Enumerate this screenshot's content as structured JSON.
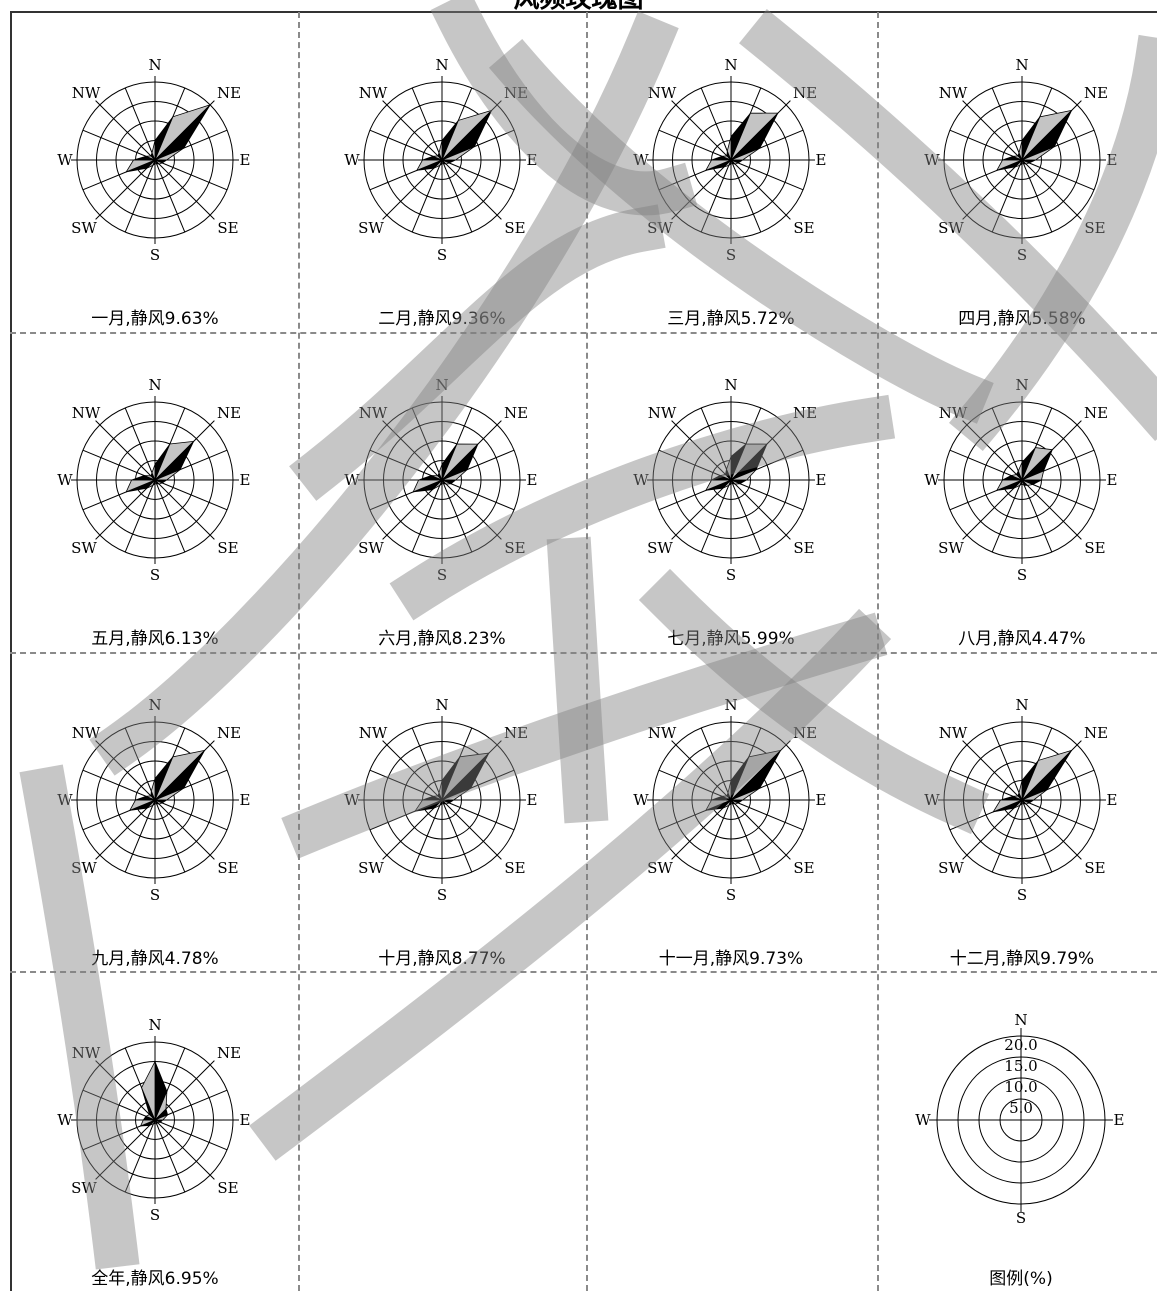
{
  "title": "风频玫瑰图",
  "directions": [
    "N",
    "NE",
    "E",
    "SE",
    "S",
    "SW",
    "W",
    "NW"
  ],
  "legend": {
    "label": "图例(%)",
    "rings": [
      "5.0",
      "10.0",
      "15.0",
      "20.0"
    ],
    "directions": [
      "N",
      "E",
      "S",
      "W"
    ]
  },
  "colors": {
    "petal_dark": "#000000",
    "petal_light": "#c4c4c4",
    "grid": "#000000",
    "divider": "#8a8a8a",
    "watermark": "#808080"
  },
  "chart_data": [
    {
      "type": "radar",
      "month_label": "一月",
      "caption": "一月,静风9.63%",
      "calm_percent": 9.63,
      "freq_percent": [
        5.0,
        12.0,
        20.0,
        8.0,
        3.0,
        2.0,
        1.5,
        1.0,
        1.0,
        1.5,
        3.0,
        8.0,
        5.5,
        2.5,
        1.5,
        2.0
      ]
    },
    {
      "type": "radar",
      "month_label": "二月",
      "caption": "二月,静风9.36%",
      "calm_percent": 9.36,
      "freq_percent": [
        5.0,
        11.0,
        18.0,
        9.0,
        3.5,
        2.0,
        1.5,
        1.0,
        1.0,
        1.5,
        3.0,
        7.0,
        5.0,
        2.5,
        1.5,
        2.0
      ]
    },
    {
      "type": "radar",
      "month_label": "三月",
      "caption": "三月,静风5.72%",
      "calm_percent": 5.72,
      "freq_percent": [
        6.0,
        13.0,
        17.0,
        8.0,
        3.0,
        2.0,
        1.5,
        1.0,
        1.0,
        1.5,
        2.5,
        7.0,
        5.0,
        2.5,
        1.5,
        2.5
      ]
    },
    {
      "type": "radar",
      "month_label": "四月",
      "caption": "四月,静风5.58%",
      "calm_percent": 5.58,
      "freq_percent": [
        5.0,
        12.0,
        18.0,
        9.0,
        3.5,
        2.0,
        1.5,
        1.0,
        1.0,
        1.5,
        2.5,
        7.0,
        5.0,
        2.5,
        1.5,
        2.0
      ]
    },
    {
      "type": "radar",
      "month_label": "五月",
      "caption": "五月,静风6.13%",
      "calm_percent": 6.13,
      "freq_percent": [
        4.0,
        10.0,
        14.0,
        7.0,
        3.0,
        2.0,
        1.5,
        1.0,
        1.0,
        1.5,
        3.0,
        8.0,
        6.0,
        3.0,
        1.5,
        2.0
      ]
    },
    {
      "type": "radar",
      "month_label": "六月",
      "caption": "六月,静风8.23%",
      "calm_percent": 8.23,
      "freq_percent": [
        4.0,
        10.0,
        13.0,
        7.0,
        3.5,
        2.5,
        1.5,
        1.0,
        1.0,
        1.5,
        3.5,
        8.0,
        6.0,
        3.0,
        1.5,
        2.0
      ]
    },
    {
      "type": "radar",
      "month_label": "七月",
      "caption": "七月,静风5.99%",
      "calm_percent": 5.99,
      "freq_percent": [
        6.0,
        10.0,
        13.0,
        7.0,
        4.0,
        2.5,
        1.5,
        1.0,
        1.0,
        1.5,
        3.0,
        7.0,
        5.0,
        3.0,
        2.0,
        3.0
      ]
    },
    {
      "type": "radar",
      "month_label": "八月",
      "caption": "八月,静风4.47%",
      "calm_percent": 4.47,
      "freq_percent": [
        4.5,
        9.0,
        11.0,
        6.0,
        5.0,
        3.0,
        2.0,
        1.5,
        1.0,
        1.5,
        3.0,
        7.0,
        5.0,
        3.0,
        2.0,
        2.5
      ]
    },
    {
      "type": "radar",
      "month_label": "九月",
      "caption": "九月,静风4.78%",
      "calm_percent": 4.78,
      "freq_percent": [
        5.5,
        12.0,
        18.0,
        8.0,
        3.0,
        2.0,
        1.5,
        1.0,
        1.0,
        1.5,
        3.0,
        7.0,
        5.0,
        2.5,
        1.5,
        2.5
      ]
    },
    {
      "type": "radar",
      "month_label": "十月",
      "caption": "十月,静风8.77%",
      "calm_percent": 8.77,
      "freq_percent": [
        5.0,
        12.0,
        17.0,
        8.0,
        3.0,
        2.0,
        1.5,
        1.0,
        1.0,
        1.5,
        3.0,
        7.5,
        5.0,
        2.5,
        1.5,
        2.0
      ]
    },
    {
      "type": "radar",
      "month_label": "十一月",
      "caption": "十一月,静风9.73%",
      "calm_percent": 9.73,
      "freq_percent": [
        5.0,
        12.0,
        18.0,
        8.0,
        3.0,
        2.0,
        1.5,
        1.0,
        1.0,
        1.5,
        3.0,
        7.0,
        5.0,
        2.5,
        1.5,
        2.0
      ]
    },
    {
      "type": "radar",
      "month_label": "十二月",
      "caption": "十二月,静风9.79%",
      "calm_percent": 9.79,
      "freq_percent": [
        5.0,
        11.0,
        18.0,
        7.0,
        3.0,
        2.0,
        1.5,
        1.0,
        1.0,
        1.5,
        3.0,
        8.0,
        5.5,
        2.5,
        1.5,
        2.0
      ]
    },
    {
      "type": "radar",
      "month_label": "全年",
      "caption": "全年,静风6.95%",
      "calm_percent": 6.95,
      "freq_percent": [
        15.0,
        8.0,
        4.0,
        3.5,
        2.0,
        1.5,
        1.0,
        1.0,
        1.0,
        1.0,
        2.0,
        4.0,
        3.0,
        2.5,
        2.0,
        9.0
      ]
    }
  ]
}
